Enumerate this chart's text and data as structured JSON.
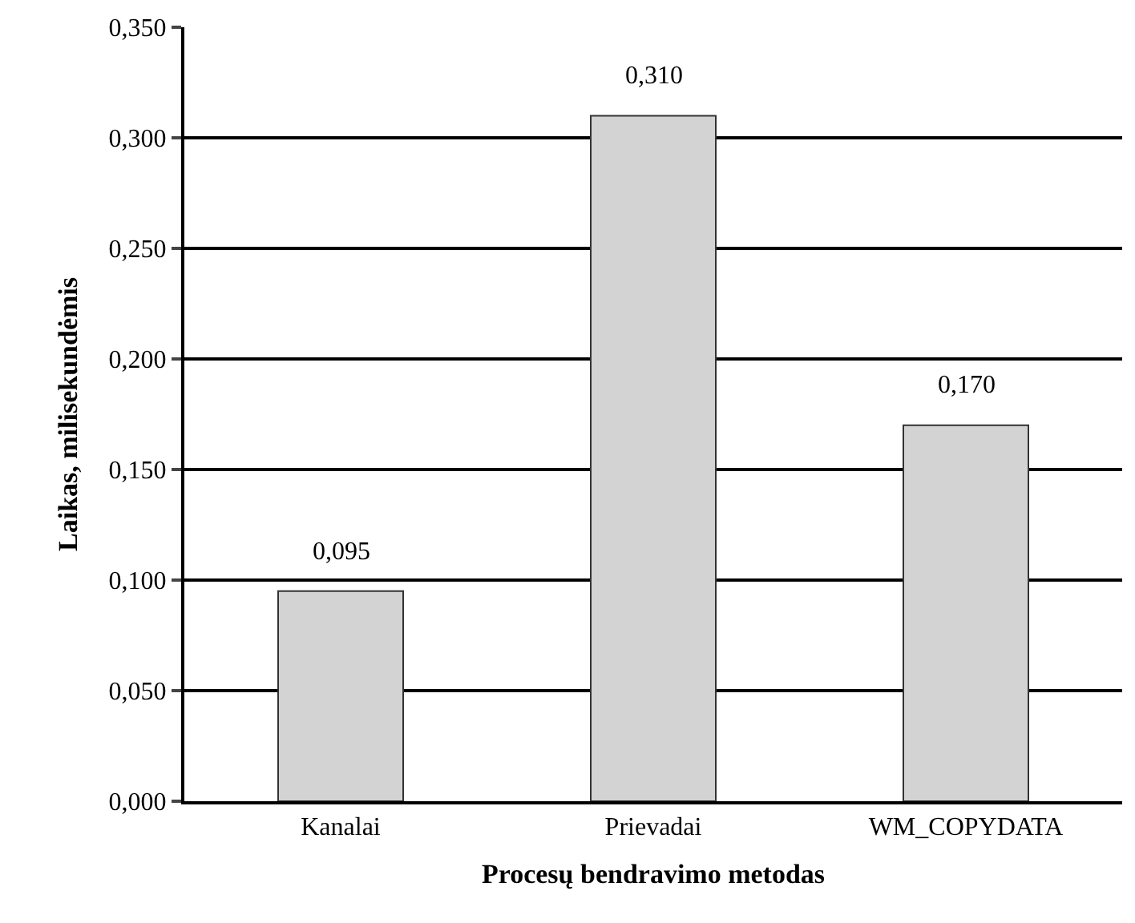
{
  "chart_data": {
    "type": "bar",
    "xlabel": "Procesų bendravimo metodas",
    "ylabel": "Laikas, milisekundėmis",
    "categories": [
      "Kanalai",
      "Prievadai",
      "WM_COPYDATA"
    ],
    "values": [
      0.095,
      0.31,
      0.17
    ],
    "color": "#d3d3d3",
    "value_labels": [
      "0,095",
      "0,310",
      "0,170"
    ],
    "ylim": [
      0,
      0.35
    ],
    "yticks": [
      {
        "value": 0,
        "label": "0,000"
      },
      {
        "value": 0.05,
        "label": "0,050"
      },
      {
        "value": 0.1,
        "label": "0,100"
      },
      {
        "value": 0.15,
        "label": "0,150"
      },
      {
        "value": 0.2,
        "label": "0,200"
      },
      {
        "value": 0.25,
        "label": "0,250"
      },
      {
        "value": 0.3,
        "label": "0,300"
      },
      {
        "value": 0.35,
        "label": "0,350"
      }
    ],
    "grid": "y"
  }
}
